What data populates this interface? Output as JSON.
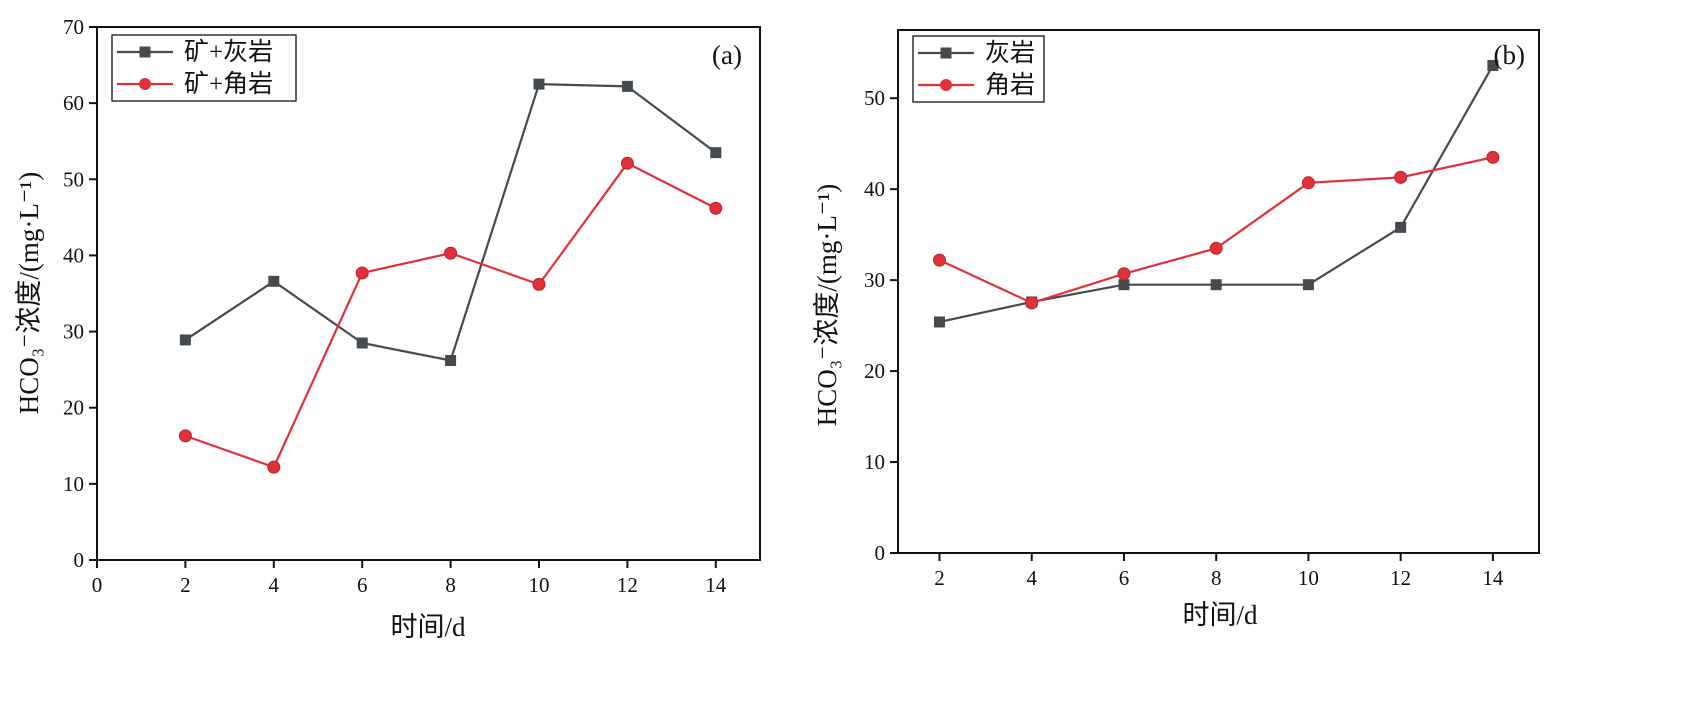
{
  "chart_data": [
    {
      "type": "line",
      "panel_label": "(a)",
      "xlabel": "时间/d",
      "ylabel": "HCO₃⁻浓度/(mg·L⁻¹)",
      "x": [
        2,
        4,
        6,
        8,
        10,
        12,
        14
      ],
      "xlim": [
        0,
        15
      ],
      "ylim": [
        0,
        70
      ],
      "xticks": [
        0,
        2,
        4,
        6,
        8,
        10,
        12,
        14
      ],
      "yticks": [
        0,
        10,
        20,
        30,
        40,
        50,
        60,
        70
      ],
      "grid": false,
      "legend_position": "top-left",
      "series": [
        {
          "name": "矿+灰岩",
          "marker": "square",
          "color": "#454a4e",
          "values": [
            28.9,
            36.6,
            28.5,
            26.2,
            62.5,
            62.2,
            53.5
          ]
        },
        {
          "name": "矿+角岩",
          "marker": "circle",
          "color": "#e0303a",
          "values": [
            16.3,
            12.2,
            37.7,
            40.3,
            36.2,
            52.1,
            46.2
          ]
        }
      ]
    },
    {
      "type": "line",
      "panel_label": "(b)",
      "xlabel": "时间/d",
      "ylabel": "HCO₃⁻浓度/(mg·L⁻¹)",
      "x": [
        2,
        4,
        6,
        8,
        10,
        12,
        14
      ],
      "xlim": [
        1.1,
        15.0
      ],
      "ylim": [
        0,
        57.5
      ],
      "xticks": [
        2,
        4,
        6,
        8,
        10,
        12,
        14
      ],
      "yticks": [
        0,
        10,
        20,
        30,
        40,
        50
      ],
      "grid": false,
      "legend_position": "top-left",
      "series": [
        {
          "name": "灰岩",
          "marker": "square",
          "color": "#454a4e",
          "values": [
            25.4,
            27.6,
            29.5,
            29.5,
            29.5,
            35.8,
            53.6
          ]
        },
        {
          "name": "角岩",
          "marker": "circle",
          "color": "#e0303a",
          "values": [
            32.2,
            27.5,
            30.7,
            33.5,
            40.7,
            41.3,
            43.5
          ]
        }
      ]
    }
  ]
}
